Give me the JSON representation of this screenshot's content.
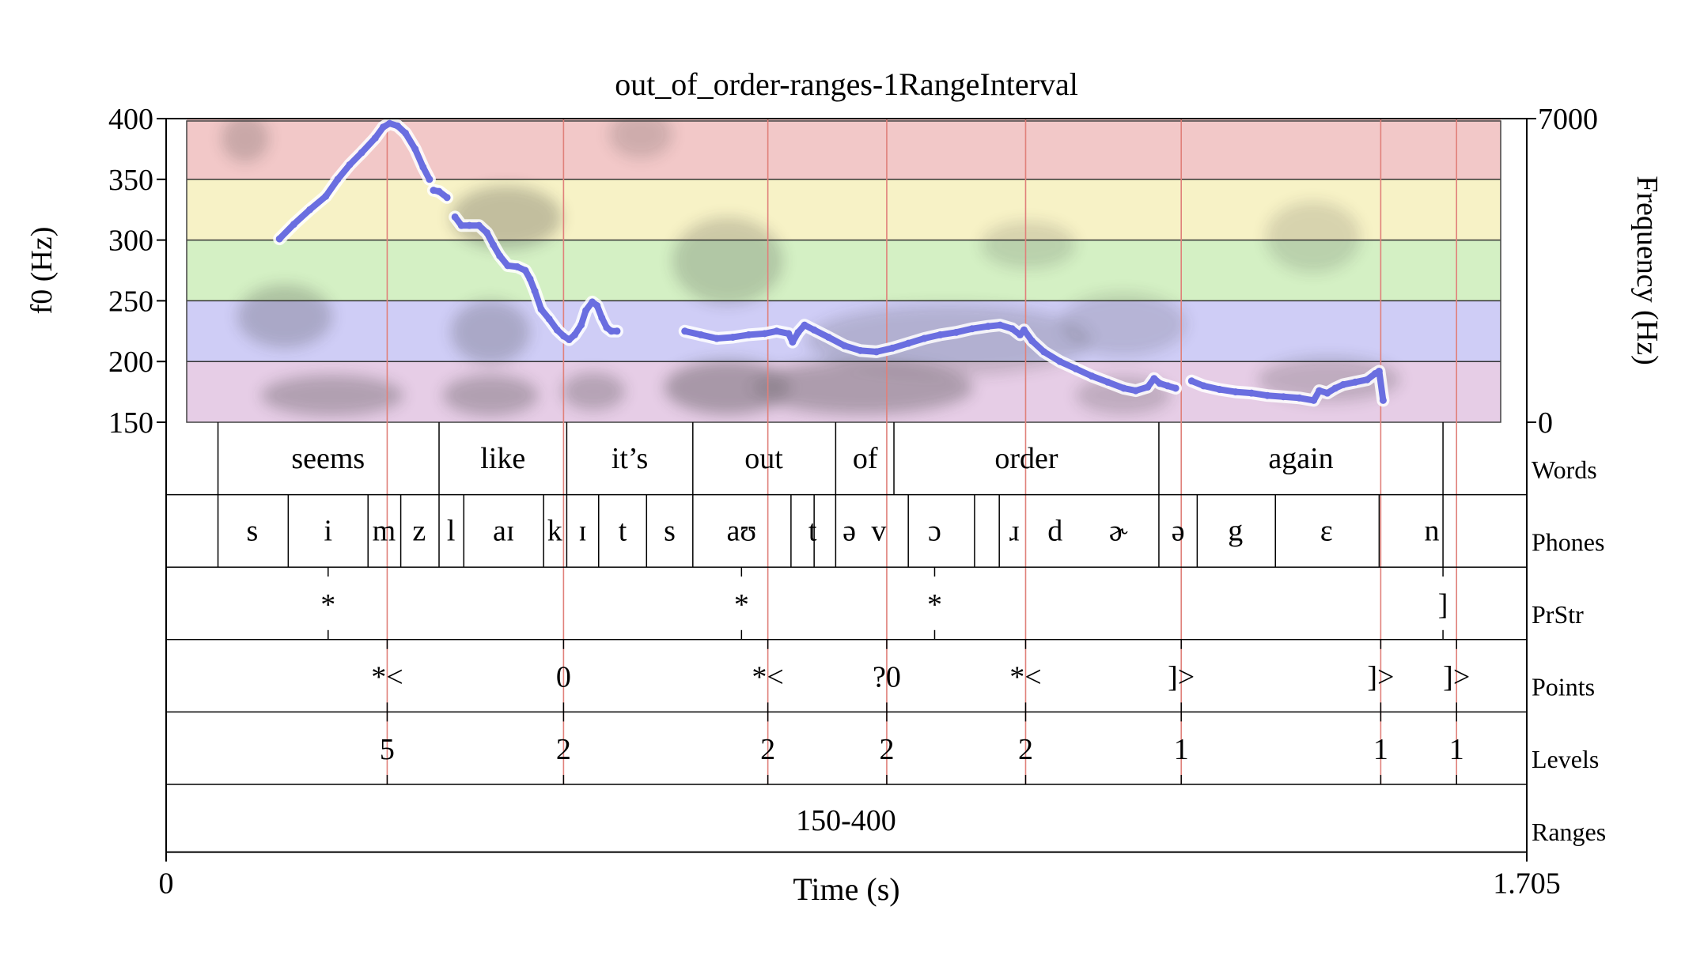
{
  "chart_data": {
    "type": "line",
    "title": "out_of_order-ranges-1RangeInterval",
    "xlabel": "Time (s)",
    "ylabel_left": "f0 (Hz)",
    "ylabel_right": "Frequency (Hz)",
    "xlim": [
      0,
      1.705
    ],
    "x_tick_labels": [
      "0",
      "1.705"
    ],
    "ylim_left": [
      150,
      400
    ],
    "y_ticks_left": [
      150,
      200,
      250,
      300,
      350,
      400
    ],
    "ylim_right": [
      0,
      7000
    ],
    "y_tick_labels_right": [
      "0",
      "7000"
    ],
    "range_bands": [
      {
        "from": 350,
        "to": 400,
        "color": "#f2c8c8"
      },
      {
        "from": 300,
        "to": 350,
        "color": "#f7f2c6"
      },
      {
        "from": 250,
        "to": 300,
        "color": "#d4f0c4"
      },
      {
        "from": 200,
        "to": 250,
        "color": "#cfcdf6"
      },
      {
        "from": 150,
        "to": 200,
        "color": "#e6cde6"
      }
    ],
    "series": [
      {
        "color": "#6a6ee0",
        "segments": [
          [
            [
              0.142,
              301
            ],
            [
              0.16,
              313
            ],
            [
              0.18,
              325
            ],
            [
              0.2,
              336
            ],
            [
              0.215,
              350
            ],
            [
              0.23,
              362
            ],
            [
              0.245,
              372
            ],
            [
              0.262,
              384
            ],
            [
              0.272,
              393
            ],
            [
              0.28,
              396
            ],
            [
              0.29,
              394
            ],
            [
              0.3,
              388
            ],
            [
              0.312,
              375
            ],
            [
              0.322,
              360
            ],
            [
              0.33,
              350
            ]
          ],
          [
            [
              0.335,
              341
            ],
            [
              0.342,
              340
            ],
            [
              0.352,
              335
            ]
          ],
          [
            [
              0.362,
              319
            ],
            [
              0.37,
              312
            ],
            [
              0.38,
              312
            ],
            [
              0.392,
              312
            ],
            [
              0.402,
              306
            ],
            [
              0.41,
              296
            ],
            [
              0.418,
              287
            ],
            [
              0.428,
              279
            ],
            [
              0.44,
              278
            ],
            [
              0.45,
              275
            ],
            [
              0.456,
              268
            ],
            [
              0.462,
              258
            ],
            [
              0.47,
              243
            ],
            [
              0.48,
              235
            ],
            [
              0.49,
              226
            ],
            [
              0.498,
              221
            ],
            [
              0.505,
              218
            ],
            [
              0.512,
              222
            ],
            [
              0.52,
              230
            ],
            [
              0.526,
              242
            ],
            [
              0.534,
              249
            ],
            [
              0.54,
              246
            ],
            [
              0.546,
              236
            ],
            [
              0.552,
              228
            ],
            [
              0.558,
              225
            ],
            [
              0.565,
              225
            ]
          ],
          [
            [
              0.65,
              225
            ],
            [
              0.67,
              222
            ],
            [
              0.69,
              219
            ],
            [
              0.71,
              220
            ],
            [
              0.73,
              222
            ],
            [
              0.75,
              223
            ],
            [
              0.765,
              225
            ],
            [
              0.78,
              223
            ],
            [
              0.785,
              216
            ],
            [
              0.792,
              224
            ],
            [
              0.8,
              230
            ],
            [
              0.812,
              226
            ],
            [
              0.83,
              220
            ],
            [
              0.85,
              213
            ],
            [
              0.87,
              209
            ],
            [
              0.89,
              208
            ],
            [
              0.91,
              211
            ],
            [
              0.93,
              215
            ],
            [
              0.95,
              219
            ],
            [
              0.97,
              222
            ],
            [
              0.99,
              224
            ],
            [
              1.01,
              227
            ],
            [
              1.03,
              229
            ],
            [
              1.045,
              230
            ],
            [
              1.06,
              227
            ],
            [
              1.07,
              222
            ],
            [
              1.075,
              226
            ],
            [
              1.085,
              217
            ],
            [
              1.1,
              208
            ],
            [
              1.12,
              200
            ],
            [
              1.14,
              194
            ],
            [
              1.16,
              188
            ],
            [
              1.18,
              183
            ],
            [
              1.2,
              178
            ],
            [
              1.215,
              176
            ],
            [
              1.23,
              179
            ],
            [
              1.238,
              186
            ],
            [
              1.245,
              182
            ],
            [
              1.255,
              180
            ],
            [
              1.265,
              178
            ]
          ],
          [
            [
              1.285,
              184
            ],
            [
              1.3,
              180
            ],
            [
              1.32,
              177
            ],
            [
              1.34,
              175
            ],
            [
              1.36,
              174
            ],
            [
              1.38,
              172
            ],
            [
              1.4,
              171
            ],
            [
              1.42,
              170
            ],
            [
              1.438,
              168
            ],
            [
              1.445,
              176
            ],
            [
              1.455,
              174
            ],
            [
              1.465,
              178
            ],
            [
              1.475,
              181
            ],
            [
              1.49,
              183
            ],
            [
              1.505,
              185
            ],
            [
              1.515,
              190
            ],
            [
              1.52,
              192
            ],
            [
              1.525,
              168
            ]
          ]
        ]
      }
    ],
    "vertical_marks": [
      0.277,
      0.498,
      0.754,
      0.903,
      1.077,
      1.272,
      1.522,
      1.617
    ],
    "tiers": [
      {
        "name": "Words",
        "boundaries": [
          0.065,
          0.342,
          0.502,
          0.66,
          0.839,
          0.912,
          1.244,
          1.6
        ],
        "labels": [
          {
            "t": 0.203,
            "text": "seems"
          },
          {
            "t": 0.422,
            "text": "like"
          },
          {
            "t": 0.581,
            "text": "it’s"
          },
          {
            "t": 0.749,
            "text": "out"
          },
          {
            "t": 0.876,
            "text": "of"
          },
          {
            "t": 1.078,
            "text": "order"
          },
          {
            "t": 1.422,
            "text": "again"
          }
        ]
      },
      {
        "name": "Phones",
        "boundaries": [
          0.065,
          0.153,
          0.253,
          0.294,
          0.342,
          0.373,
          0.473,
          0.502,
          0.542,
          0.602,
          0.66,
          0.783,
          0.812,
          0.839,
          0.93,
          1.013,
          1.044,
          1.244,
          1.292,
          1.39,
          1.52,
          1.6
        ],
        "labels": [
          {
            "t": 0.108,
            "text": "s"
          },
          {
            "t": 0.203,
            "text": "i"
          },
          {
            "t": 0.273,
            "text": "m"
          },
          {
            "t": 0.317,
            "text": "z"
          },
          {
            "t": 0.357,
            "text": "l"
          },
          {
            "t": 0.423,
            "text": "aɪ"
          },
          {
            "t": 0.487,
            "text": "k"
          },
          {
            "t": 0.522,
            "text": "ɪ"
          },
          {
            "t": 0.572,
            "text": "t"
          },
          {
            "t": 0.631,
            "text": "s"
          },
          {
            "t": 0.721,
            "text": "aʊ"
          },
          {
            "t": 0.81,
            "text": "t"
          },
          {
            "t": 0.856,
            "text": "ə"
          },
          {
            "t": 0.893,
            "text": "v"
          },
          {
            "t": 0.963,
            "text": "ɔ"
          },
          {
            "t": 1.063,
            "text": "ɹ"
          },
          {
            "t": 1.114,
            "text": "d"
          },
          {
            "t": 1.193,
            "text": "ɚ"
          },
          {
            "t": 1.268,
            "text": "ə"
          },
          {
            "t": 1.34,
            "text": "g"
          },
          {
            "t": 1.454,
            "text": "ɛ"
          },
          {
            "t": 1.586,
            "text": "n"
          }
        ]
      },
      {
        "name": "PrStr",
        "points": [
          {
            "t": 0.203,
            "text": "*"
          },
          {
            "t": 0.721,
            "text": "*"
          },
          {
            "t": 0.963,
            "text": "*"
          },
          {
            "t": 1.6,
            "text": "]"
          }
        ]
      },
      {
        "name": "Points",
        "points": [
          {
            "t": 0.277,
            "text": "*<"
          },
          {
            "t": 0.498,
            "text": "0"
          },
          {
            "t": 0.754,
            "text": "*<"
          },
          {
            "t": 0.903,
            "text": "?0"
          },
          {
            "t": 1.077,
            "text": "*<"
          },
          {
            "t": 1.272,
            "text": "]>"
          },
          {
            "t": 1.522,
            "text": "]>"
          },
          {
            "t": 1.617,
            "text": "]>"
          }
        ]
      },
      {
        "name": "Levels",
        "points": [
          {
            "t": 0.277,
            "text": "5"
          },
          {
            "t": 0.498,
            "text": "2"
          },
          {
            "t": 0.754,
            "text": "2"
          },
          {
            "t": 0.903,
            "text": "2"
          },
          {
            "t": 1.077,
            "text": "2"
          },
          {
            "t": 1.272,
            "text": "1"
          },
          {
            "t": 1.522,
            "text": "1"
          },
          {
            "t": 1.617,
            "text": "1"
          }
        ]
      },
      {
        "name": "Ranges",
        "boundaries": [],
        "labels": [
          {
            "t": 0.852,
            "text": "150-400"
          }
        ]
      }
    ],
    "legend": "none",
    "grid": false
  }
}
